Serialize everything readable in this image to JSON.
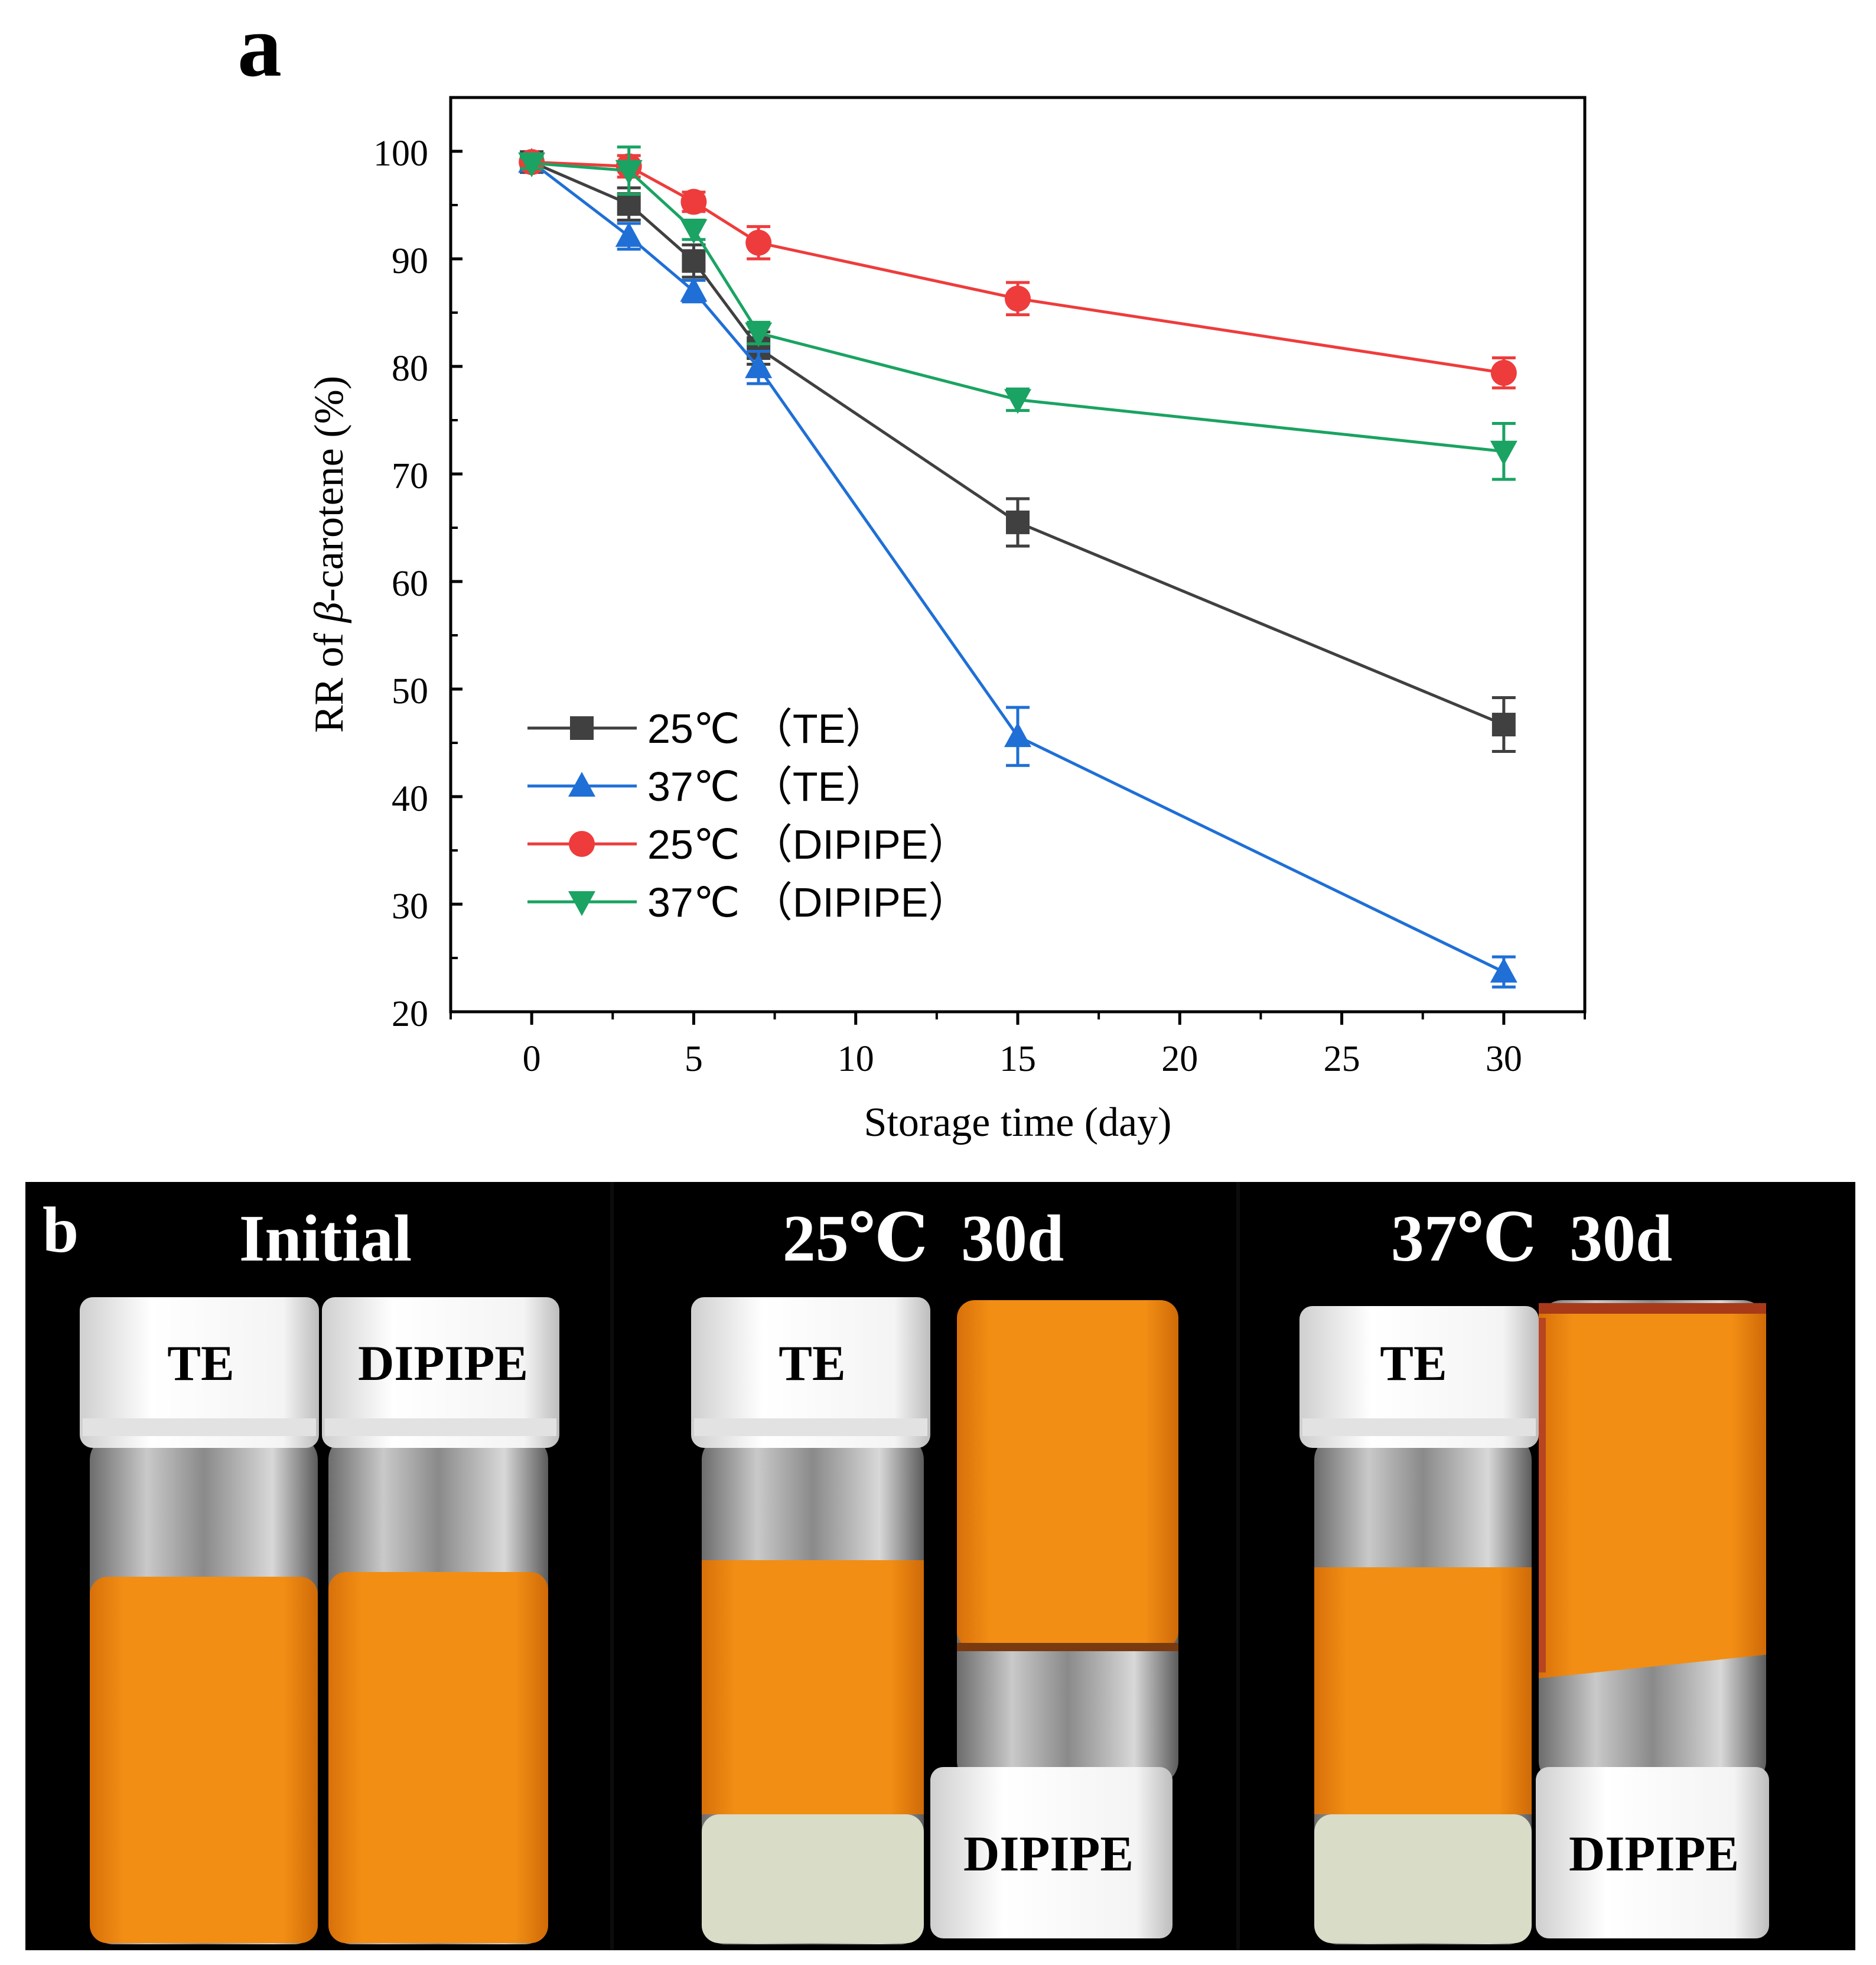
{
  "panel_a": {
    "label": "a"
  },
  "panel_b": {
    "label": "b",
    "groups": [
      {
        "title": "Initial",
        "caps": [
          "TE",
          "DIPIPE"
        ]
      },
      {
        "title": "25℃  30d",
        "caps": [
          "TE",
          "DIPIPE"
        ]
      },
      {
        "title": "37℃  30d",
        "caps": [
          "TE",
          "DIPIPE"
        ]
      }
    ]
  },
  "colors": {
    "black": "#404040",
    "blue": "#1f6fd6",
    "red": "#ee3c3c",
    "green": "#1aa362",
    "orange": "#f08c14",
    "background": "#000000"
  },
  "chart_data": {
    "type": "line",
    "xlabel": "Storage time (day)",
    "ylabel_parts": [
      "RR of ",
      "β",
      "-carotene (%)"
    ],
    "xlim": [
      -2.5,
      32.5
    ],
    "ylim": [
      20,
      105
    ],
    "xticks": [
      0,
      5,
      10,
      15,
      20,
      25,
      30
    ],
    "yticks": [
      20,
      30,
      40,
      50,
      60,
      70,
      80,
      90,
      100
    ],
    "x": [
      0,
      3,
      5,
      7,
      15,
      30
    ],
    "legend_position": "lower-left",
    "series": [
      {
        "name": "25℃  （TE）",
        "marker": "square",
        "color": "#404040",
        "values": [
          99.0,
          95.1,
          89.8,
          81.7,
          65.5,
          46.7
        ],
        "errors": [
          0.5,
          1.5,
          1.5,
          1.5,
          2.2,
          2.5
        ]
      },
      {
        "name": "37℃  （TE）",
        "marker": "triangle-up",
        "color": "#1f6fd6",
        "values": [
          99.0,
          92.1,
          87.0,
          79.9,
          45.6,
          23.7
        ],
        "errors": [
          0.5,
          1.2,
          1.0,
          1.5,
          2.7,
          1.4
        ]
      },
      {
        "name": "25℃  （DIPIPE）",
        "marker": "circle",
        "color": "#ee3c3c",
        "values": [
          99.0,
          98.6,
          95.3,
          91.5,
          86.3,
          79.4
        ],
        "errors": [
          0.5,
          1.0,
          0.9,
          1.5,
          1.5,
          1.4
        ]
      },
      {
        "name": "37℃  （DIPIPE）",
        "marker": "triangle-down",
        "color": "#1aa362",
        "values": [
          98.9,
          98.2,
          92.7,
          83.1,
          76.9,
          72.1
        ],
        "errors": [
          0.5,
          2.2,
          0.9,
          1.0,
          1.0,
          2.6
        ]
      }
    ]
  }
}
